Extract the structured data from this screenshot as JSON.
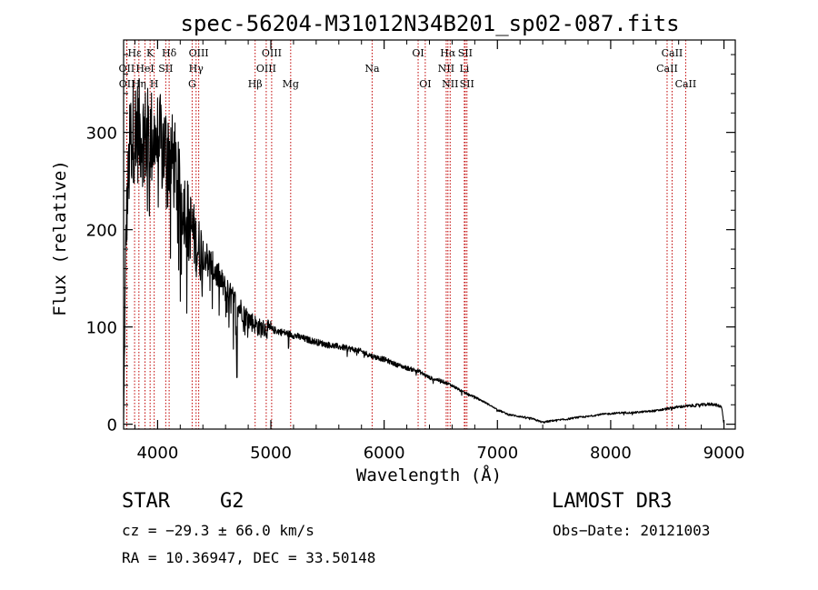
{
  "chart_data": {
    "type": "line",
    "title": "spec-56204-M31012N34B201_sp02-087.fits",
    "xlabel": "Wavelength (Å)",
    "ylabel": "Flux (relative)",
    "xlim": [
      3700,
      9100
    ],
    "ylim": [
      -5,
      395
    ],
    "xticks": [
      4000,
      5000,
      6000,
      7000,
      8000,
      9000
    ],
    "yticks": [
      0,
      100,
      200,
      300
    ],
    "grid": false,
    "spectrum_anchors": {
      "wavelength": [
        3700,
        3720,
        3760,
        3800,
        3850,
        3900,
        3950,
        4000,
        4050,
        4100,
        4150,
        4200,
        4250,
        4300,
        4350,
        4400,
        4450,
        4500,
        4600,
        4700,
        4800,
        4900,
        5000,
        5100,
        5200,
        5300,
        5400,
        5500,
        5600,
        5700,
        5800,
        5900,
        6000,
        6100,
        6200,
        6300,
        6400,
        6500,
        6600,
        6700,
        6800,
        6900,
        7000,
        7100,
        7200,
        7300,
        7400,
        7500,
        7600,
        7700,
        7800,
        7900,
        8000,
        8100,
        8200,
        8300,
        8400,
        8500,
        8600,
        8700,
        8800,
        8900,
        8980,
        9000
      ],
      "flux": [
        5,
        200,
        300,
        310,
        305,
        300,
        300,
        295,
        290,
        285,
        270,
        240,
        225,
        205,
        185,
        180,
        170,
        160,
        140,
        125,
        110,
        100,
        98,
        95,
        92,
        88,
        85,
        82,
        80,
        78,
        75,
        70,
        67,
        62,
        58,
        55,
        48,
        45,
        40,
        33,
        28,
        22,
        15,
        10,
        8,
        6,
        2,
        4,
        5,
        7,
        8,
        10,
        11,
        12,
        12,
        13,
        14,
        16,
        18,
        19,
        20,
        21,
        18,
        0
      ]
    },
    "spectral_lines": [
      {
        "name": "Hε",
        "wavelength": 3797,
        "row": 1
      },
      {
        "name": "OII",
        "wavelength": 3727,
        "row": 2
      },
      {
        "name": "OII",
        "wavelength": 3729,
        "row": 3
      },
      {
        "name": "Hη",
        "wavelength": 3835,
        "row": 3
      },
      {
        "name": "HeI",
        "wavelength": 3889,
        "row": 2
      },
      {
        "name": "K",
        "wavelength": 3934,
        "row": 1
      },
      {
        "name": "H",
        "wavelength": 3970,
        "row": 3
      },
      {
        "name": "SII",
        "wavelength": 4072,
        "row": 2
      },
      {
        "name": "Hδ",
        "wavelength": 4102,
        "row": 1
      },
      {
        "name": "G",
        "wavelength": 4305,
        "row": 3
      },
      {
        "name": "Hγ",
        "wavelength": 4340,
        "row": 2
      },
      {
        "name": "OIII",
        "wavelength": 4363,
        "row": 1
      },
      {
        "name": "Hβ",
        "wavelength": 4861,
        "row": 3
      },
      {
        "name": "OIII",
        "wavelength": 4959,
        "row": 2
      },
      {
        "name": "OIII",
        "wavelength": 5007,
        "row": 1
      },
      {
        "name": "Mg",
        "wavelength": 5175,
        "row": 3
      },
      {
        "name": "Na",
        "wavelength": 5894,
        "row": 2
      },
      {
        "name": "OI",
        "wavelength": 6300,
        "row": 1
      },
      {
        "name": "OI",
        "wavelength": 6363,
        "row": 3
      },
      {
        "name": "NII",
        "wavelength": 6548,
        "row": 2
      },
      {
        "name": "Hα",
        "wavelength": 6563,
        "row": 1
      },
      {
        "name": "NII",
        "wavelength": 6583,
        "row": 3
      },
      {
        "name": "SII",
        "wavelength": 6716,
        "row": 1
      },
      {
        "name": "Li",
        "wavelength": 6708,
        "row": 2
      },
      {
        "name": "SII",
        "wavelength": 6731,
        "row": 3
      },
      {
        "name": "CaII",
        "wavelength": 8498,
        "row": 2
      },
      {
        "name": "CaII",
        "wavelength": 8542,
        "row": 1
      },
      {
        "name": "CaII",
        "wavelength": 8662,
        "row": 3
      }
    ]
  },
  "info": {
    "object_class": "STAR",
    "subclass": "G2",
    "survey": "LAMOST DR3",
    "cz_line": "cz = −29.3 ± 66.0 km/s",
    "obs_date_line": "Obs−Date: 20121003",
    "radec_line": "RA =  10.36947, DEC =  33.50148"
  },
  "colors": {
    "spectrum": "#000000",
    "line_markers": "#c00000",
    "axes": "#000000"
  }
}
